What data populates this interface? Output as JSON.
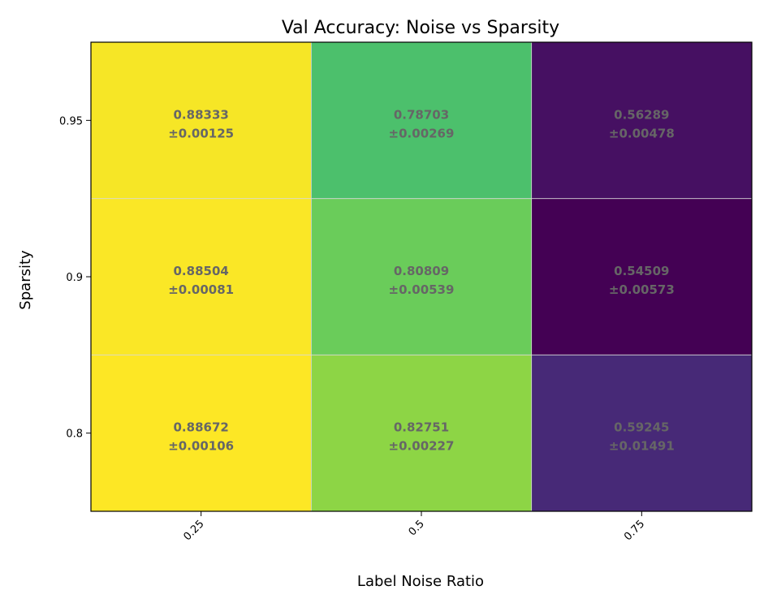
{
  "chart_data": {
    "type": "heatmap",
    "title": "Val Accuracy: Noise vs Sparsity",
    "xlabel": "Label Noise Ratio",
    "ylabel": "Sparsity",
    "x_categories": [
      "0.25",
      "0.5",
      "0.75"
    ],
    "y_categories": [
      "0.95",
      "0.9",
      "0.8"
    ],
    "values": [
      [
        0.88333,
        0.78703,
        0.56289
      ],
      [
        0.88504,
        0.80809,
        0.54509
      ],
      [
        0.88672,
        0.82751,
        0.59245
      ]
    ],
    "std": [
      [
        0.00125,
        0.00269,
        0.00478
      ],
      [
        0.00081,
        0.00539,
        0.00573
      ],
      [
        0.00106,
        0.00227,
        0.01491
      ]
    ],
    "cell_labels": [
      [
        "0.88333",
        "0.78703",
        "0.56289"
      ],
      [
        "0.88504",
        "0.80809",
        "0.54509"
      ],
      [
        "0.88672",
        "0.82751",
        "0.59245"
      ]
    ],
    "cell_std_labels": [
      [
        "±0.00125",
        "±0.00269",
        "±0.00478"
      ],
      [
        "±0.00081",
        "±0.00539",
        "±0.00573"
      ],
      [
        "±0.00106",
        "±0.00227",
        "±0.01491"
      ]
    ],
    "colormap": "viridis",
    "grid": true,
    "colors": {
      "grid_line": "#d9d9d9",
      "cell_text": "#666666"
    }
  }
}
